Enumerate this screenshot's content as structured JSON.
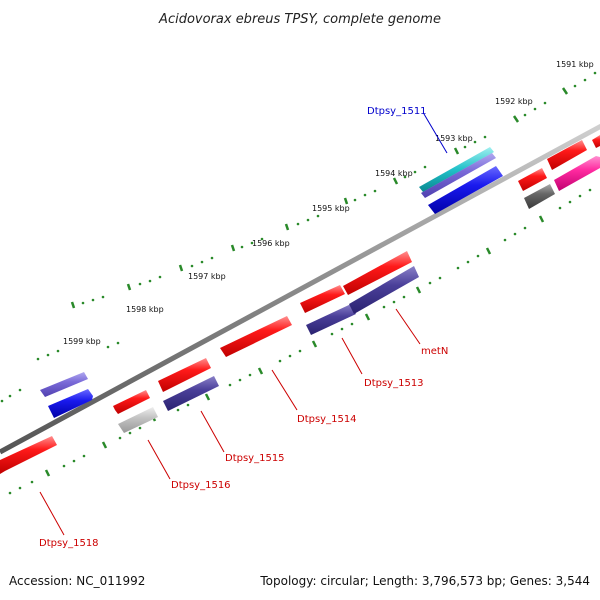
{
  "title": "Acidovorax ebreus TPSY, complete genome",
  "footer": {
    "accession": "Accession: NC_011992",
    "summary": "Topology: circular; Length: 3,796,573 bp; Genes: 3,544"
  },
  "ruler_ticks": [
    "1591 kbp",
    "1592 kbp",
    "1593 kbp",
    "1594 kbp",
    "1595 kbp",
    "1596 kbp",
    "1597 kbp",
    "1598 kbp",
    "1599 kbp"
  ],
  "gene_labels": [
    {
      "name": "Dtpsy_1511",
      "color": "#0000cc"
    },
    {
      "name": "metN",
      "color": "#cc0000"
    },
    {
      "name": "Dtpsy_1513",
      "color": "#cc0000"
    },
    {
      "name": "Dtpsy_1514",
      "color": "#cc0000"
    },
    {
      "name": "Dtpsy_1515",
      "color": "#cc0000"
    },
    {
      "name": "Dtpsy_1516",
      "color": "#cc0000"
    },
    {
      "name": "Dtpsy_1518",
      "color": "#cc0000"
    }
  ],
  "colors": {
    "forward_gene": "#ee1111",
    "reverse_gene": "#3a2f88",
    "blue_gene": "#1a1aee",
    "backbone": "#888888",
    "tick": "#2a8a2a"
  }
}
